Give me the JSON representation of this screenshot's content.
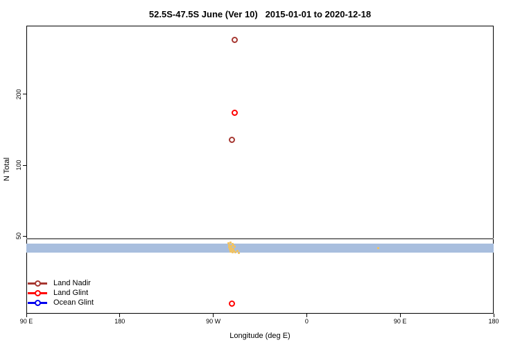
{
  "title": "52.5S-47.5S June (Ver 10)   2015-01-01 to 2020-12-18",
  "x_axis": {
    "label": "Longitude (deg E)",
    "tick_labels": [
      "90 E",
      "180",
      "90 W",
      "0",
      "90 E",
      "180"
    ]
  },
  "y_axis": {
    "label": "N Total",
    "tick_labels": [
      "50",
      "100",
      "200"
    ],
    "scale": "log"
  },
  "legend": {
    "marker_shape": "line-open-circle",
    "items": [
      {
        "label": "Land Nadir",
        "color": "#A63731"
      },
      {
        "label": "Land Glint",
        "color": "#FF0000"
      },
      {
        "label": "Ocean Glint",
        "color": "#0000EE"
      }
    ]
  },
  "colors": {
    "background": "#FFFFFF",
    "axis_and_text": "#000000",
    "land_nadir": "#A63731",
    "land_glint": "#FF0000",
    "ocean_glint_band": "#A8BEDE",
    "unlabeled_orange": "#F2C25E",
    "reference_line": "#7E7E7E"
  },
  "chart_data": {
    "type": "scatter",
    "title": "52.5S-47.5S June (Ver 10)   2015-01-01 to 2020-12-18",
    "xlabel": "Longitude (deg E)",
    "ylabel": "N Total",
    "y_scale": "log",
    "ylim": [
      23.5,
      390
    ],
    "x_axis_start_deg_e": 90,
    "x_axis_span_deg": 450,
    "x_tick_positions_deg": [
      0,
      90,
      180,
      270,
      360,
      450
    ],
    "x_tick_labels": [
      "90 E",
      "180",
      "90 W",
      "0",
      "90 E",
      "180"
    ],
    "y_ticks": [
      50,
      100,
      200
    ],
    "grid": "off",
    "legend_position": "bottom-left-inside",
    "reference_line": {
      "n": 48.8,
      "color": "#7E7E7E"
    },
    "series": [
      {
        "name": "Land Nadir",
        "marker": "open-circle",
        "color": "#A63731",
        "points": [
          {
            "lon": -69.3,
            "n": 340
          },
          {
            "lon": -72.0,
            "n": 128
          }
        ]
      },
      {
        "name": "Land Glint",
        "marker": "open-circle",
        "color": "#FF0000",
        "points": [
          {
            "lon": -69.3,
            "n": 167
          },
          {
            "lon": -72.0,
            "n": 26
          }
        ]
      },
      {
        "name": "Ocean Glint",
        "marker": "band",
        "color": "#A8BEDE",
        "band": {
          "n_min": 42.6,
          "n_max": 46.4,
          "lon_coverage": "all longitudes"
        }
      },
      {
        "name": "unlabeled-orange",
        "marker": "dot",
        "color": "#F2C25E",
        "points": [
          {
            "lon": -75.3,
            "n": 46.6
          },
          {
            "lon": -73.3,
            "n": 47.0
          },
          {
            "lon": -71.3,
            "n": 46.3
          },
          {
            "lon": -74.7,
            "n": 45.7
          },
          {
            "lon": -72.7,
            "n": 45.4
          },
          {
            "lon": -70.7,
            "n": 45.7
          },
          {
            "lon": -69.3,
            "n": 45.1
          },
          {
            "lon": -74.7,
            "n": 44.8
          },
          {
            "lon": -72.7,
            "n": 44.5
          },
          {
            "lon": -70.7,
            "n": 44.2
          },
          {
            "lon": -74.0,
            "n": 43.9
          },
          {
            "lon": -72.0,
            "n": 43.6
          },
          {
            "lon": -70.0,
            "n": 43.3
          },
          {
            "lon": -73.3,
            "n": 43.0
          },
          {
            "lon": -71.3,
            "n": 42.7
          },
          {
            "lon": -68.7,
            "n": 42.7
          },
          {
            "lon": -66.7,
            "n": 43.3
          },
          {
            "lon": -65.3,
            "n": 42.4
          },
          {
            "lon": 68.7,
            "n": 44.5
          }
        ]
      }
    ]
  }
}
